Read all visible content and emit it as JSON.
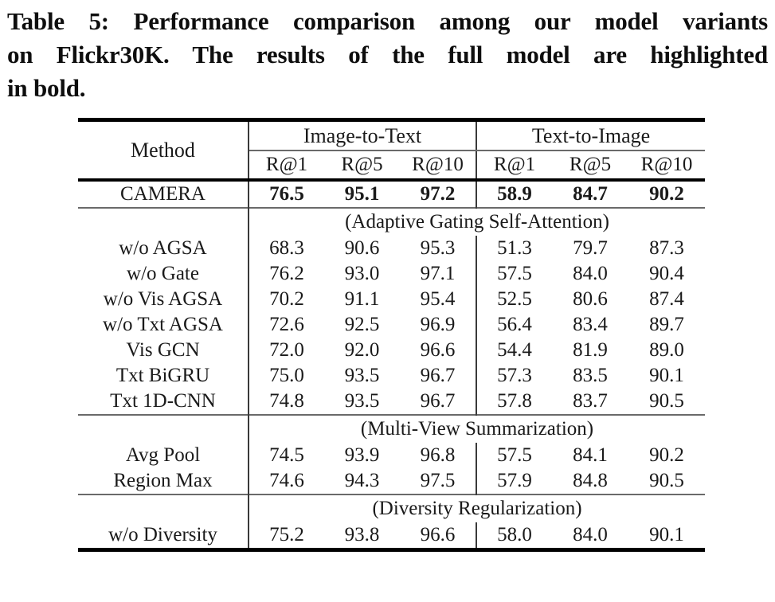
{
  "caption": {
    "lines": [
      "Table 5: Performance comparison among our model variants",
      "on Flickr30K. The results of the full model are highlighted",
      "in bold."
    ]
  },
  "table": {
    "method_header": "Method",
    "groups": [
      {
        "label": "Image-to-Text",
        "subheaders": [
          "R@1",
          "R@5",
          "R@10"
        ]
      },
      {
        "label": "Text-to-Image",
        "subheaders": [
          "R@1",
          "R@5",
          "R@10"
        ]
      }
    ],
    "full_model_row": {
      "method": "CAMERA",
      "values": [
        "76.5",
        "95.1",
        "97.2",
        "58.9",
        "84.7",
        "90.2"
      ],
      "bold": true
    },
    "sections": [
      {
        "title": "(Adaptive Gating Self-Attention)",
        "rows": [
          {
            "method": "w/o AGSA",
            "values": [
              "68.3",
              "90.6",
              "95.3",
              "51.3",
              "79.7",
              "87.3"
            ]
          },
          {
            "method": "w/o Gate",
            "values": [
              "76.2",
              "93.0",
              "97.1",
              "57.5",
              "84.0",
              "90.4"
            ]
          },
          {
            "method": "w/o Vis AGSA",
            "values": [
              "70.2",
              "91.1",
              "95.4",
              "52.5",
              "80.6",
              "87.4"
            ]
          },
          {
            "method": "w/o Txt AGSA",
            "values": [
              "72.6",
              "92.5",
              "96.9",
              "56.4",
              "83.4",
              "89.7"
            ]
          },
          {
            "method": "Vis GCN",
            "values": [
              "72.0",
              "92.0",
              "96.6",
              "54.4",
              "81.9",
              "89.0"
            ]
          },
          {
            "method": "Txt BiGRU",
            "values": [
              "75.0",
              "93.5",
              "96.7",
              "57.3",
              "83.5",
              "90.1"
            ]
          },
          {
            "method": "Txt 1D-CNN",
            "values": [
              "74.8",
              "93.5",
              "96.7",
              "57.8",
              "83.7",
              "90.5"
            ]
          }
        ]
      },
      {
        "title": "(Multi-View Summarization)",
        "rows": [
          {
            "method": "Avg Pool",
            "values": [
              "74.5",
              "93.9",
              "96.8",
              "57.5",
              "84.1",
              "90.2"
            ]
          },
          {
            "method": "Region Max",
            "values": [
              "74.6",
              "94.3",
              "97.5",
              "57.9",
              "84.8",
              "90.5"
            ]
          }
        ]
      },
      {
        "title": "(Diversity Regularization)",
        "rows": [
          {
            "method": "w/o Diversity",
            "values": [
              "75.2",
              "93.8",
              "96.6",
              "58.0",
              "84.0",
              "90.1"
            ]
          }
        ]
      }
    ]
  },
  "colors": {
    "text": "#141414",
    "thick_rule": "#000000",
    "thin_rule": "#6a6a6a"
  }
}
